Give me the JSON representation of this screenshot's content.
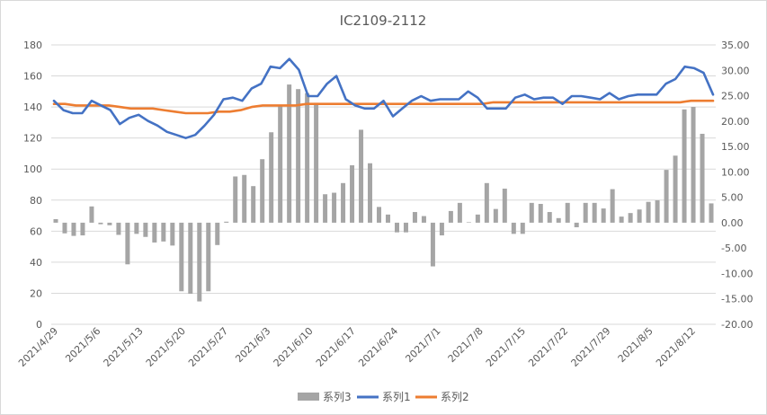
{
  "chart_data": {
    "type": "bar+line",
    "title": "IC2109-2112",
    "x_tick_labels": [
      "2021/4/29",
      "2021/5/6",
      "2021/5/13",
      "2021/5/20",
      "2021/5/27",
      "2021/6/3",
      "2021/6/10",
      "2021/6/17",
      "2021/6/24",
      "2021/7/1",
      "2021/7/8",
      "2021/7/15",
      "2021/7/22",
      "2021/7/29",
      "2021/8/5",
      "2021/8/12"
    ],
    "y_left": {
      "min": 0,
      "max": 180,
      "step": 20,
      "tick_labels": [
        "0",
        "20",
        "40",
        "60",
        "80",
        "100",
        "120",
        "140",
        "160",
        "180"
      ]
    },
    "y_right": {
      "min": -20,
      "max": 35,
      "step": 5,
      "tick_labels": [
        "-20.00",
        "-15.00",
        "-10.00",
        "-5.00",
        "0.00",
        "5.00",
        "10.00",
        "15.00",
        "20.00",
        "25.00",
        "30.00",
        "35.00"
      ]
    },
    "grid": true,
    "legend_position": "bottom",
    "series": [
      {
        "name": "系列3",
        "type": "bar",
        "axis": "right",
        "color": "#a5a5a5",
        "values": [
          0.7,
          -2.1,
          -2.6,
          -2.5,
          3.2,
          -0.3,
          -0.5,
          -2.4,
          -8.2,
          -2.2,
          -2.8,
          -3.9,
          -3.7,
          -4.5,
          -13.5,
          -14.0,
          -15.5,
          -13.5,
          -4.4,
          0.2,
          9.1,
          9.4,
          7.2,
          12.5,
          17.8,
          22.9,
          27.2,
          26.3,
          25.5,
          23.6,
          5.6,
          5.9,
          7.8,
          11.3,
          18.3,
          11.7,
          3.1,
          1.6,
          -1.9,
          -1.9,
          2.1,
          1.3,
          -8.6,
          -2.5,
          2.3,
          3.9,
          0.1,
          1.6,
          7.8,
          2.7,
          6.7,
          -2.2,
          -2.2,
          3.9,
          3.7,
          2.1,
          0.9,
          3.9,
          -0.9,
          3.9,
          3.9,
          2.8,
          6.6,
          1.2,
          1.9,
          2.6,
          4.1,
          4.4,
          10.4,
          13.2,
          22.3,
          22.8,
          17.5,
          3.8
        ]
      },
      {
        "name": "系列1",
        "type": "line",
        "axis": "left",
        "color": "#4472c4",
        "values": [
          144,
          138,
          136,
          136,
          144,
          141,
          138,
          129,
          133,
          135,
          131,
          128,
          124,
          122,
          120,
          122,
          128,
          135,
          145,
          146,
          144,
          152,
          155,
          166,
          165,
          171,
          164,
          147,
          147,
          155,
          160,
          145,
          141,
          139,
          139,
          144,
          134,
          139,
          144,
          147,
          144,
          145,
          145,
          145,
          150,
          146,
          139,
          139,
          139,
          146,
          148,
          145,
          146,
          146,
          142,
          147,
          147,
          146,
          145,
          149,
          145,
          147,
          148,
          148,
          148,
          155,
          158,
          166,
          165,
          162,
          148
        ]
      },
      {
        "name": "系列2",
        "type": "line",
        "axis": "left",
        "color": "#ed7d31",
        "values": [
          142,
          142,
          141,
          141,
          141,
          141,
          140,
          139,
          139,
          139,
          138,
          137,
          136,
          136,
          136,
          137,
          137,
          138,
          140,
          141,
          141,
          141,
          141,
          142,
          142,
          142,
          142,
          142,
          142,
          142,
          142,
          142,
          142,
          142,
          142,
          142,
          142,
          142,
          142,
          142,
          143,
          143,
          143,
          143,
          143,
          143,
          143,
          143,
          143,
          143,
          143,
          143,
          143,
          143,
          143,
          143,
          143,
          143,
          144,
          144,
          144
        ]
      }
    ]
  }
}
